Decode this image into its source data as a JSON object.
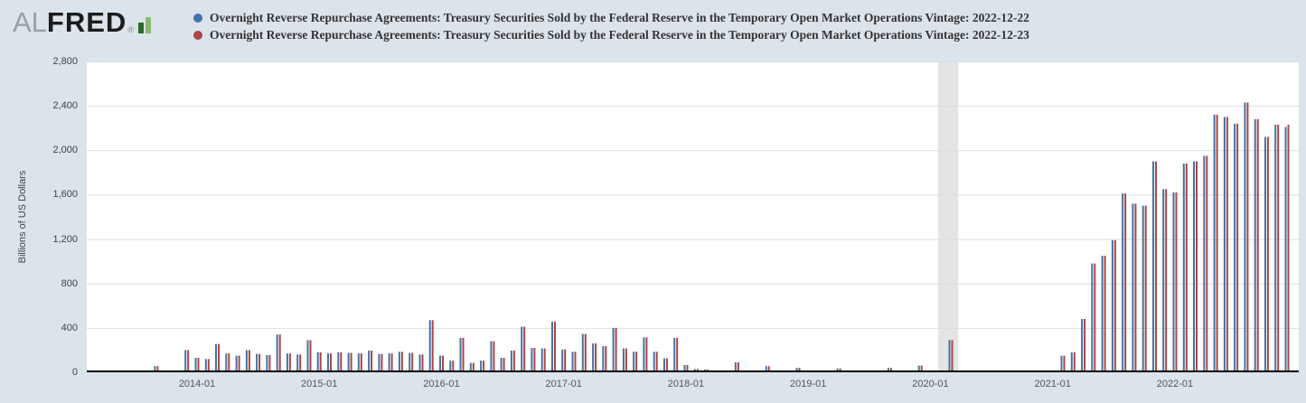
{
  "colors": {
    "background": "#dbe3eb",
    "plot_background": "#ffffff",
    "gridline": "#d9dde2",
    "recession_band": "#e4e4e4",
    "axis": "#000000"
  },
  "logo": {
    "al": "AL",
    "fred": "FRED",
    "registered": "®"
  },
  "legend": [
    {
      "color": "#4572a7",
      "label": "Overnight Reverse Repurchase Agreements: Treasury Securities Sold by the Federal Reserve in the Temporary Open Market Operations Vintage: 2022-12-22"
    },
    {
      "color": "#aa4643",
      "label": "Overnight Reverse Repurchase Agreements: Treasury Securities Sold by the Federal Reserve in the Temporary Open Market Operations Vintage: 2022-12-23"
    }
  ],
  "chart_data": {
    "type": "bar",
    "title": "",
    "ylabel": "Billions of US Dollars",
    "ylim": [
      0,
      2800
    ],
    "ytick_step": 400,
    "ytick_labels": [
      "0",
      "400",
      "800",
      "1,200",
      "1,600",
      "2,000",
      "2,400",
      "2,800"
    ],
    "xtick_labels": [
      "2014-01",
      "2015-01",
      "2016-01",
      "2017-01",
      "2018-01",
      "2019-01",
      "2020-01",
      "2021-01",
      "2022-01"
    ],
    "recession_band": {
      "start": "2020-02",
      "end": "2020-04"
    },
    "x": [
      "2013-09",
      "2013-12",
      "2014-01",
      "2014-02",
      "2014-03",
      "2014-04",
      "2014-05",
      "2014-06",
      "2014-07",
      "2014-08",
      "2014-09",
      "2014-10",
      "2014-11",
      "2014-12",
      "2015-01",
      "2015-02",
      "2015-03",
      "2015-04",
      "2015-05",
      "2015-06",
      "2015-07",
      "2015-08",
      "2015-09",
      "2015-10",
      "2015-11",
      "2015-12",
      "2016-01",
      "2016-02",
      "2016-03",
      "2016-04",
      "2016-05",
      "2016-06",
      "2016-07",
      "2016-08",
      "2016-09",
      "2016-10",
      "2016-11",
      "2016-12",
      "2017-01",
      "2017-02",
      "2017-03",
      "2017-04",
      "2017-05",
      "2017-06",
      "2017-07",
      "2017-08",
      "2017-09",
      "2017-10",
      "2017-11",
      "2017-12",
      "2018-01",
      "2018-02",
      "2018-03",
      "2018-06",
      "2018-09",
      "2018-12",
      "2019-04",
      "2019-09",
      "2019-12",
      "2020-03",
      "2021-02",
      "2021-03",
      "2021-04",
      "2021-05",
      "2021-06",
      "2021-07",
      "2021-08",
      "2021-09",
      "2021-10",
      "2021-11",
      "2021-12",
      "2022-01",
      "2022-02",
      "2022-03",
      "2022-04",
      "2022-05",
      "2022-06",
      "2022-07",
      "2022-08",
      "2022-09",
      "2022-10",
      "2022-11",
      "2022-12"
    ],
    "series": [
      {
        "name": "Vintage: 2022-12-22",
        "color": "#4572a7",
        "values": [
          55,
          200,
          130,
          120,
          255,
          170,
          150,
          200,
          165,
          155,
          340,
          170,
          160,
          290,
          180,
          170,
          180,
          175,
          170,
          195,
          165,
          170,
          185,
          175,
          160,
          470,
          150,
          105,
          310,
          85,
          105,
          280,
          130,
          195,
          410,
          220,
          215,
          455,
          205,
          185,
          345,
          260,
          235,
          400,
          215,
          185,
          315,
          185,
          125,
          310,
          65,
          30,
          25,
          90,
          55,
          40,
          35,
          40,
          60,
          290,
          150,
          180,
          480,
          980,
          1050,
          1190,
          1610,
          1520,
          1500,
          1900,
          1650,
          1620,
          1880,
          1900,
          1950,
          2320,
          2300,
          2240,
          2430,
          2280,
          2120,
          2230,
          2210
        ]
      },
      {
        "name": "Vintage: 2022-12-23",
        "color": "#aa4643",
        "values": [
          55,
          200,
          130,
          120,
          255,
          170,
          150,
          200,
          165,
          155,
          340,
          170,
          160,
          290,
          180,
          170,
          180,
          175,
          170,
          195,
          165,
          170,
          185,
          175,
          160,
          470,
          150,
          105,
          310,
          85,
          105,
          280,
          130,
          195,
          410,
          220,
          215,
          455,
          205,
          185,
          345,
          260,
          235,
          400,
          215,
          185,
          315,
          185,
          125,
          310,
          65,
          30,
          25,
          90,
          55,
          40,
          35,
          40,
          60,
          290,
          150,
          180,
          480,
          980,
          1050,
          1190,
          1610,
          1520,
          1500,
          1900,
          1650,
          1620,
          1880,
          1900,
          1950,
          2320,
          2300,
          2240,
          2430,
          2280,
          2120,
          2230,
          2230
        ]
      }
    ]
  }
}
